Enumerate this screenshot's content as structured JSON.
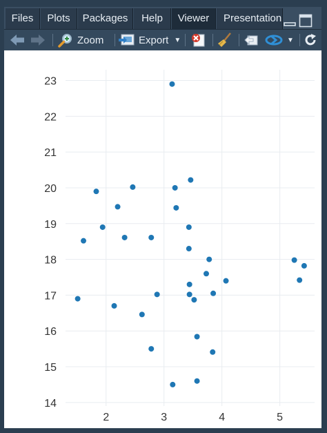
{
  "tabs": [
    {
      "label": "Files",
      "active": false
    },
    {
      "label": "Plots",
      "active": false
    },
    {
      "label": "Packages",
      "active": false
    },
    {
      "label": "Help",
      "active": false
    },
    {
      "label": "Viewer",
      "active": true
    },
    {
      "label": "Presentation",
      "active": false
    }
  ],
  "toolbar": {
    "zoom_label": "Zoom",
    "export_label": "Export"
  },
  "colors": {
    "point": "#1f77b4",
    "grid": "#e8ecf0",
    "panel_bg": "#2b3e50"
  },
  "chart_data": {
    "type": "scatter",
    "title": "",
    "xlabel": "",
    "ylabel": "",
    "xlim": [
      1.3,
      5.6
    ],
    "ylim": [
      13.9,
      23.3
    ],
    "xticks": [
      2,
      3,
      4,
      5
    ],
    "yticks": [
      14,
      15,
      16,
      17,
      18,
      19,
      20,
      21,
      22,
      23
    ],
    "grid": true,
    "points": [
      {
        "x": 1.51,
        "y": 16.9
      },
      {
        "x": 1.61,
        "y": 18.52
      },
      {
        "x": 1.83,
        "y": 19.9
      },
      {
        "x": 1.94,
        "y": 18.9
      },
      {
        "x": 2.14,
        "y": 16.7
      },
      {
        "x": 2.2,
        "y": 19.47
      },
      {
        "x": 2.32,
        "y": 18.61
      },
      {
        "x": 2.46,
        "y": 20.02
      },
      {
        "x": 2.62,
        "y": 16.46
      },
      {
        "x": 2.78,
        "y": 18.61
      },
      {
        "x": 2.78,
        "y": 15.5
      },
      {
        "x": 2.88,
        "y": 17.02
      },
      {
        "x": 3.14,
        "y": 22.9
      },
      {
        "x": 3.15,
        "y": 14.5
      },
      {
        "x": 3.19,
        "y": 20.0
      },
      {
        "x": 3.21,
        "y": 19.44
      },
      {
        "x": 3.43,
        "y": 18.9
      },
      {
        "x": 3.43,
        "y": 18.3
      },
      {
        "x": 3.44,
        "y": 17.3
      },
      {
        "x": 3.44,
        "y": 17.02
      },
      {
        "x": 3.46,
        "y": 20.22
      },
      {
        "x": 3.52,
        "y": 16.87
      },
      {
        "x": 3.57,
        "y": 15.84
      },
      {
        "x": 3.57,
        "y": 14.6
      },
      {
        "x": 3.73,
        "y": 17.6
      },
      {
        "x": 3.78,
        "y": 18.0
      },
      {
        "x": 3.84,
        "y": 15.41
      },
      {
        "x": 3.85,
        "y": 17.05
      },
      {
        "x": 4.07,
        "y": 17.4
      },
      {
        "x": 5.25,
        "y": 17.98
      },
      {
        "x": 5.34,
        "y": 17.42
      },
      {
        "x": 5.42,
        "y": 17.82
      }
    ]
  }
}
